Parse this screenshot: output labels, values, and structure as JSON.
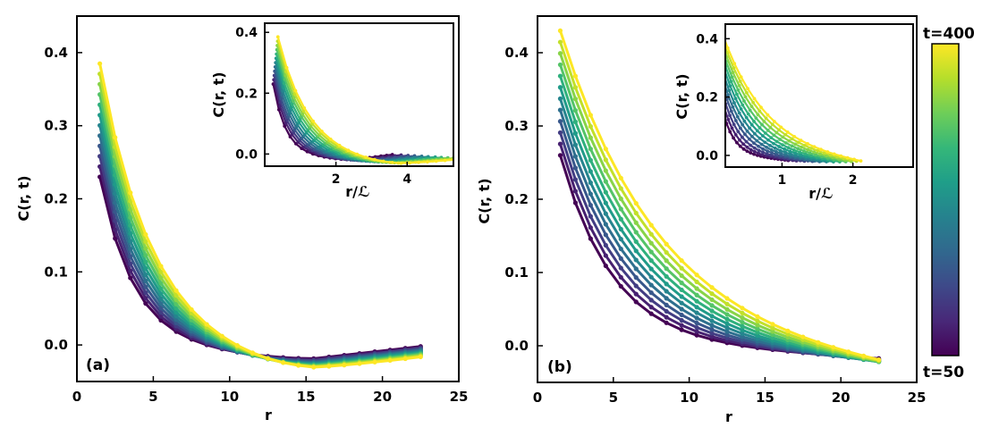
{
  "chart_data": {
    "type": "line",
    "colormap": "viridis",
    "colorbar": {
      "label_top": "t=400",
      "label_bottom": "t=50",
      "stops": [
        "#440154",
        "#482878",
        "#3e4989",
        "#31688e",
        "#26828e",
        "#1f9e89",
        "#35b779",
        "#6ece58",
        "#b5de2b",
        "#fde725"
      ]
    },
    "series_count": 12,
    "panels": [
      {
        "id": "a",
        "panel_label": "(a)",
        "xlabel": "r",
        "ylabel": "C(r, t)",
        "xlim": [
          0,
          25
        ],
        "ylim": [
          -0.05,
          0.45
        ],
        "xticks": [
          0,
          5,
          10,
          15,
          20,
          25
        ],
        "yticks": [
          0.0,
          0.1,
          0.2,
          0.3,
          0.4
        ],
        "xtick_labels": [
          "0",
          "5",
          "10",
          "15",
          "20",
          "25"
        ],
        "ytick_labels": [
          "0.0",
          "0.1",
          "0.2",
          "0.3",
          "0.4"
        ],
        "r_min": 1.5,
        "r_max": 22.5,
        "n_points": 22,
        "amp_range": [
          0.23,
          0.385
        ],
        "decay_range": [
          2.2,
          3.3
        ],
        "min_depth_range": [
          0.019,
          0.036
        ],
        "r_min_location": 15.5,
        "end_value_range": [
          -0.002,
          -0.017
        ],
        "inset": {
          "xlabel": "r/ℒ",
          "ylabel": "C(r, t)",
          "xlim": [
            0.0,
            5.3
          ],
          "ylim": [
            -0.04,
            0.43
          ],
          "xticks": [
            2,
            4
          ],
          "yticks": [
            0.0,
            0.2,
            0.4
          ],
          "xtick_labels": [
            "2",
            "4"
          ],
          "ytick_labels": [
            "0.0",
            "0.2",
            "0.4"
          ]
        }
      },
      {
        "id": "b",
        "panel_label": "(b)",
        "xlabel": "r",
        "ylabel": "C(r, t)",
        "xlim": [
          0,
          25
        ],
        "ylim": [
          -0.05,
          0.45
        ],
        "xticks": [
          0,
          5,
          10,
          15,
          20,
          25
        ],
        "yticks": [
          0.0,
          0.1,
          0.2,
          0.3,
          0.4
        ],
        "xtick_labels": [
          "0",
          "5",
          "10",
          "15",
          "20",
          "25"
        ],
        "ytick_labels": [
          "0.0",
          "0.1",
          "0.2",
          "0.3",
          "0.4"
        ],
        "r_min": 1.5,
        "r_max": 22.5,
        "n_points": 22,
        "amp_range": [
          0.26,
          0.43
        ],
        "decay_range": [
          3.5,
          6.5
        ],
        "end_value_range": [
          -0.018,
          -0.036
        ],
        "inset": {
          "xlabel": "r/ℒ",
          "ylabel": "C(r, t)",
          "xlim": [
            0.2,
            2.85
          ],
          "ylim": [
            -0.04,
            0.45
          ],
          "xticks": [
            1,
            2
          ],
          "yticks": [
            0.0,
            0.2,
            0.4
          ],
          "xtick_labels": [
            "1",
            "2"
          ],
          "ytick_labels": [
            "0.0",
            "0.2",
            "0.4"
          ]
        }
      }
    ]
  }
}
